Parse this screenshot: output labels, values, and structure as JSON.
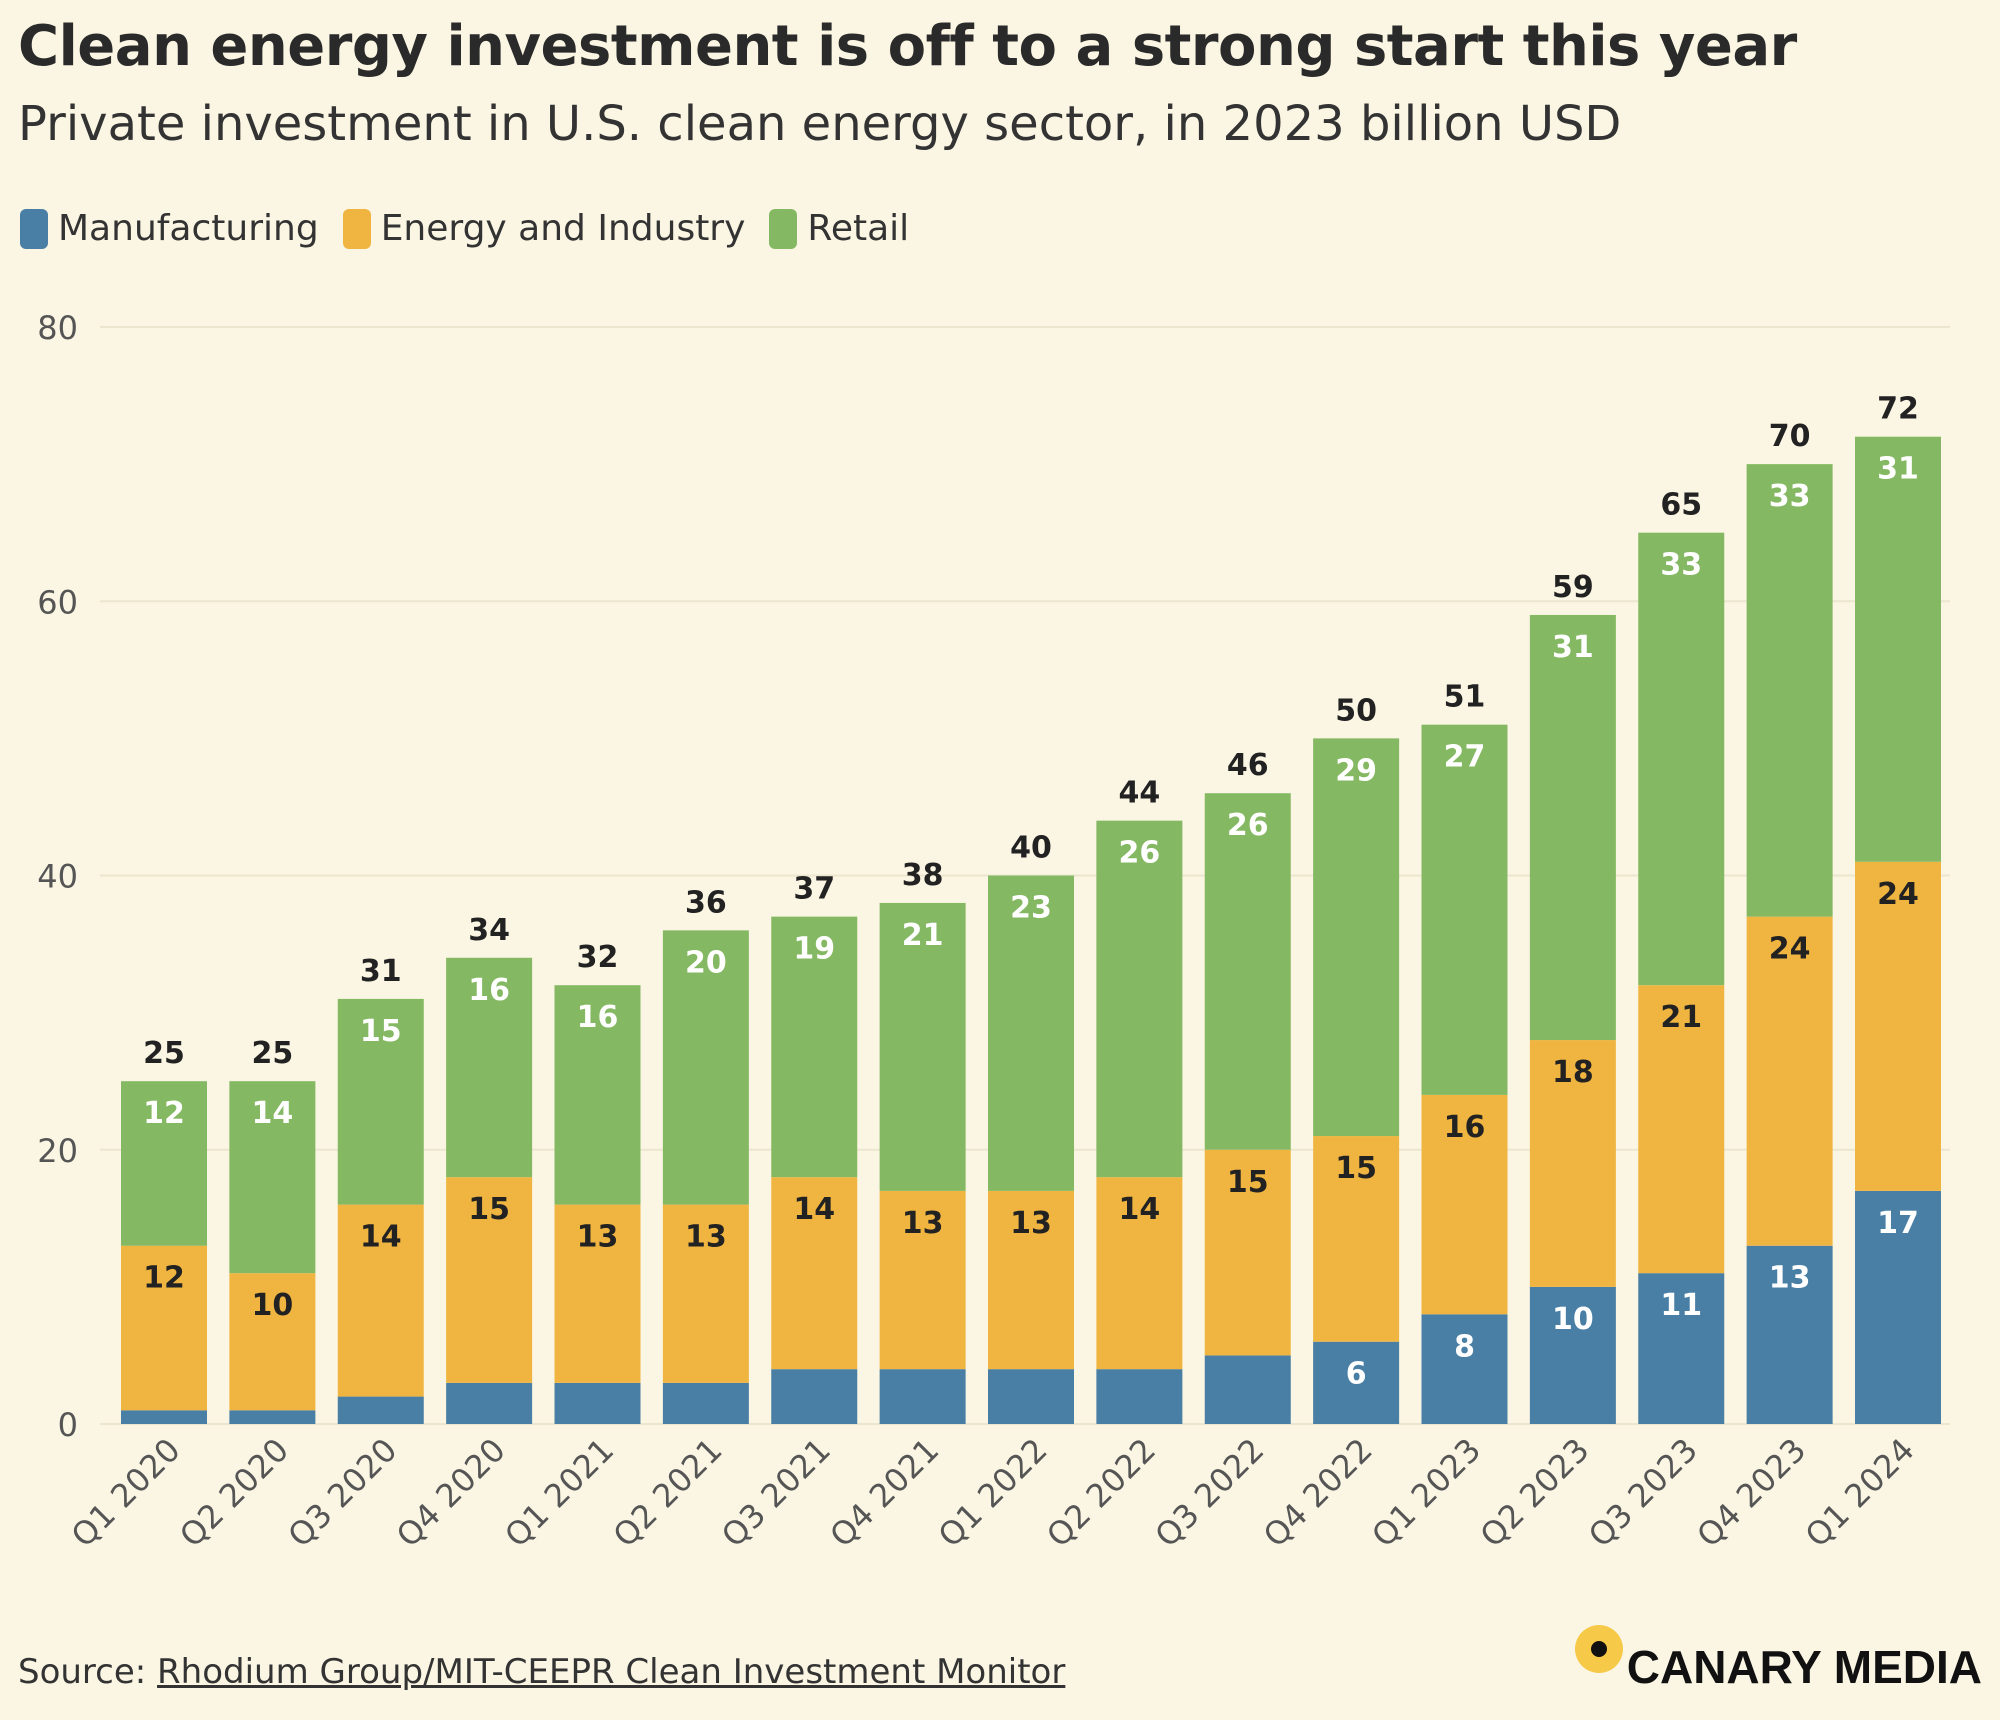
{
  "title": "Clean energy investment is off to a strong start this year",
  "subtitle": "Private investment in U.S. clean energy sector, in 2023 billion USD",
  "source_label": "Source: ",
  "source_link": "Rhodium Group/MIT-CEEPR Clean Investment Monitor",
  "brand": "CANARY MEDIA",
  "colors": {
    "background": "#fbf6e3",
    "manufacturing": "#4a7fa5",
    "energy_industry": "#f0b541",
    "retail": "#85b863",
    "brand_mark": "#f6c948"
  },
  "chart_data": {
    "type": "bar",
    "stacked": true,
    "categories": [
      "Q1 2020",
      "Q2 2020",
      "Q3 2020",
      "Q4 2020",
      "Q1 2021",
      "Q2 2021",
      "Q3 2021",
      "Q4 2021",
      "Q1 2022",
      "Q2 2022",
      "Q3 2022",
      "Q4 2022",
      "Q1 2023",
      "Q2 2023",
      "Q3 2023",
      "Q4 2023",
      "Q1 2024"
    ],
    "series": [
      {
        "name": "Manufacturing",
        "color": "#4a7fa5",
        "values": [
          1,
          1,
          2,
          3,
          3,
          3,
          4,
          4,
          4,
          4,
          5,
          6,
          8,
          10,
          11,
          13,
          17
        ],
        "labels": [
          "",
          "",
          "",
          "",
          "",
          "",
          "",
          "",
          "",
          "",
          "",
          "6",
          "8",
          "10",
          "11",
          "13",
          "17"
        ]
      },
      {
        "name": "Energy and Industry",
        "color": "#f0b541",
        "values": [
          12,
          10,
          14,
          15,
          13,
          13,
          14,
          13,
          13,
          14,
          15,
          15,
          16,
          18,
          21,
          24,
          24
        ],
        "labels": [
          "12",
          "10",
          "14",
          "15",
          "13",
          "13",
          "14",
          "13",
          "13",
          "14",
          "15",
          "15",
          "16",
          "18",
          "21",
          "24",
          "24"
        ]
      },
      {
        "name": "Retail",
        "color": "#85b863",
        "values": [
          12,
          14,
          15,
          16,
          16,
          20,
          19,
          21,
          23,
          26,
          26,
          29,
          27,
          31,
          33,
          33,
          31
        ],
        "labels": [
          "12",
          "14",
          "15",
          "16",
          "16",
          "20",
          "19",
          "21",
          "23",
          "26",
          "26",
          "29",
          "27",
          "31",
          "33",
          "33",
          "31"
        ]
      }
    ],
    "totals": [
      "25",
      "25",
      "31",
      "34",
      "32",
      "36",
      "37",
      "38",
      "40",
      "44",
      "46",
      "50",
      "51",
      "59",
      "65",
      "70",
      "72"
    ],
    "ylim": [
      0,
      80
    ],
    "yticks": [
      "0",
      "20",
      "40",
      "60",
      "80"
    ],
    "grid": true,
    "legend_position": "top-left"
  }
}
